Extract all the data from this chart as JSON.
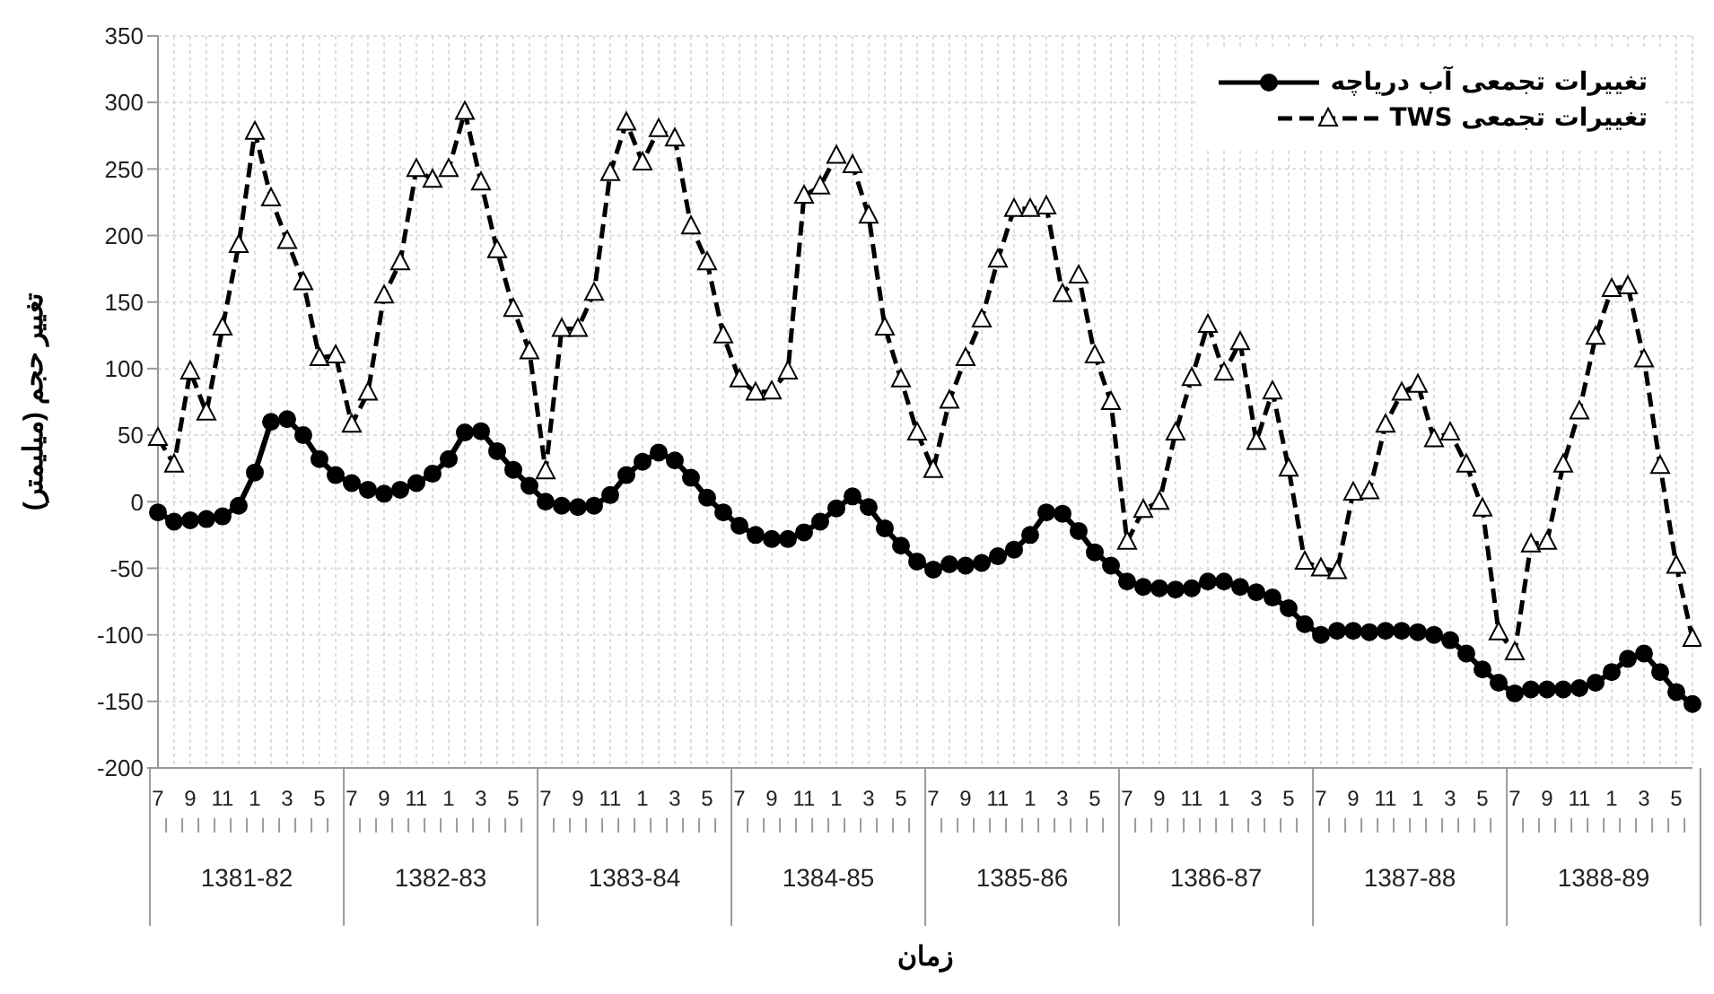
{
  "chart_data": {
    "type": "line",
    "ylabel": "تغییر حجم (میلیمتر)",
    "xlabel": "زمان",
    "categories": [
      "7",
      null,
      "9",
      null,
      "11",
      null,
      "1",
      null,
      "3",
      null,
      "5",
      null,
      "7",
      null,
      "9",
      null,
      "11",
      null,
      "1",
      null,
      "3",
      null,
      "5",
      null,
      "7",
      null,
      "9",
      null,
      "11",
      null,
      "1",
      null,
      "3",
      null,
      "5",
      null,
      "7",
      null,
      "9",
      null,
      "11",
      null,
      "1",
      null,
      "3",
      null,
      "5",
      null,
      "7",
      null,
      "9",
      null,
      "11",
      null,
      "1",
      null,
      "3",
      null,
      "5",
      null,
      "7",
      null,
      "9",
      null,
      "11",
      null,
      "1",
      null,
      "3",
      null,
      "5",
      null,
      "7",
      null,
      "9",
      null,
      "11",
      null,
      "1",
      null,
      "3",
      null,
      "5",
      null,
      "7",
      null,
      "9",
      null,
      "11",
      null,
      "1",
      null,
      "3",
      null,
      "5",
      null
    ],
    "annotations": [
      "1381-82",
      "1382-83",
      "1383-84",
      "1384-85",
      "1385-86",
      "1386-87",
      "1387-88",
      "1388-89"
    ],
    "series": [
      {
        "name": "تغییرات تجمعی آب دریاچه",
        "color": "#000000",
        "marker": "circle",
        "line_style": "solid",
        "values": [
          -8,
          -15,
          -14,
          -13,
          -11,
          -3,
          22,
          60,
          62,
          50,
          32,
          20,
          14,
          9,
          6,
          9,
          14,
          21,
          32,
          52,
          53,
          38,
          24,
          12,
          0,
          -3,
          -4,
          -3,
          5,
          20,
          30,
          37,
          31,
          18,
          3,
          -8,
          -18,
          -25,
          -28,
          -28,
          -23,
          -15,
          -5,
          4,
          -4,
          -20,
          -33,
          -45,
          -51,
          -47,
          -48,
          -46,
          -41,
          -36,
          -25,
          -8,
          -9,
          -22,
          -38,
          -48,
          -60,
          -64,
          -65,
          -66,
          -65,
          -60,
          -60,
          -64,
          -68,
          -72,
          -80,
          -92,
          -100,
          -97,
          -97,
          -98,
          -97,
          -97,
          -98,
          -100,
          -104,
          -114,
          -126,
          -136,
          -144,
          -141,
          -141,
          -141,
          -140,
          -136,
          -128,
          -118,
          -114,
          -128,
          -143,
          -152
        ]
      },
      {
        "name": "تغییرات تجمعی TWS",
        "color": "#000000",
        "marker": "triangle",
        "line_style": "dashed",
        "values": [
          48,
          28,
          98,
          67,
          131,
          193,
          278,
          228,
          196,
          165,
          108,
          110,
          58,
          82,
          155,
          180,
          250,
          242,
          250,
          293,
          240,
          189,
          145,
          113,
          23,
          130,
          130,
          157,
          247,
          285,
          255,
          280,
          273,
          207,
          180,
          125,
          92,
          82,
          83,
          98,
          230,
          237,
          260,
          253,
          215,
          131,
          92,
          52,
          24,
          76,
          108,
          137,
          182,
          220,
          220,
          222,
          156,
          170,
          110,
          75,
          -30,
          -6,
          0,
          52,
          93,
          133,
          97,
          120,
          45,
          83,
          25,
          -45,
          -50,
          -52,
          7,
          8,
          58,
          82,
          88,
          47,
          52,
          28,
          -5,
          -98,
          -113,
          -32,
          -30,
          28,
          68,
          124,
          160,
          162,
          107,
          27,
          -48,
          -103
        ]
      }
    ],
    "ylim": [
      -200,
      350
    ],
    "yticks": [
      -200,
      -150,
      -100,
      -50,
      0,
      50,
      100,
      150,
      200,
      250,
      300,
      350
    ],
    "grid": true,
    "legend": "top right"
  }
}
